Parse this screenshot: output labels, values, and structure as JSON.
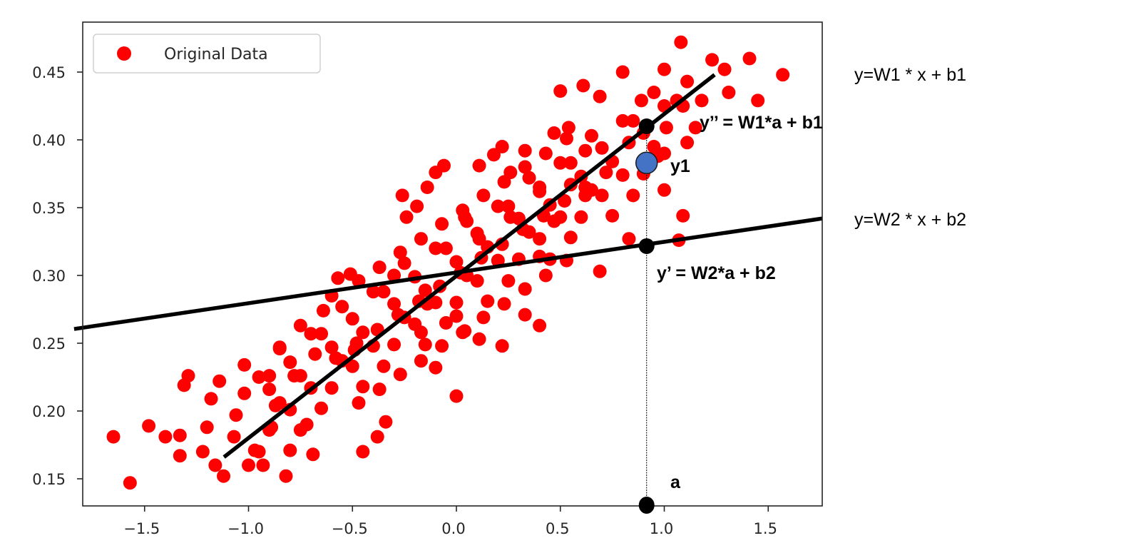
{
  "chart_data": {
    "type": "scatter",
    "title": "",
    "xlabel": "",
    "ylabel": "",
    "xlim": [
      -1.8,
      1.76
    ],
    "ylim": [
      0.13,
      0.487
    ],
    "grid": false,
    "legend": {
      "placement": "top-left",
      "entries": [
        "Original Data"
      ]
    },
    "xticks": [
      "−1.5",
      "−1.0",
      "−0.5",
      "0.0",
      "0.5",
      "1.0",
      "1.5"
    ],
    "xtick_values": [
      -1.5,
      -1.0,
      -0.5,
      0.0,
      0.5,
      1.0,
      1.5
    ],
    "yticks": [
      "0.15",
      "0.20",
      "0.25",
      "0.30",
      "0.35",
      "0.40",
      "0.45"
    ],
    "ytick_values": [
      0.15,
      0.2,
      0.25,
      0.3,
      0.35,
      0.4,
      0.45
    ],
    "series": [
      {
        "name": "Original Data",
        "color": "#ff0000",
        "points": [
          [
            -1.65,
            0.181
          ],
          [
            -1.57,
            0.147
          ],
          [
            -1.48,
            0.189
          ],
          [
            -1.4,
            0.181
          ],
          [
            -1.33,
            0.182
          ],
          [
            -1.33,
            0.167
          ],
          [
            -1.29,
            0.226
          ],
          [
            -1.31,
            0.219
          ],
          [
            -1.22,
            0.17
          ],
          [
            -1.2,
            0.188
          ],
          [
            -1.18,
            0.209
          ],
          [
            -1.14,
            0.222
          ],
          [
            -1.12,
            0.152
          ],
          [
            -1.16,
            0.16
          ],
          [
            -1.07,
            0.181
          ],
          [
            -1.06,
            0.197
          ],
          [
            -1.02,
            0.213
          ],
          [
            -1.02,
            0.234
          ],
          [
            -1.0,
            0.16
          ],
          [
            -0.97,
            0.171
          ],
          [
            -0.93,
            0.16
          ],
          [
            -0.89,
            0.188
          ],
          [
            -0.87,
            0.204
          ],
          [
            -0.9,
            0.226
          ],
          [
            -0.85,
            0.247
          ],
          [
            -0.82,
            0.152
          ],
          [
            -0.8,
            0.171
          ],
          [
            -0.78,
            0.226
          ],
          [
            -0.75,
            0.263
          ],
          [
            -0.72,
            0.19
          ],
          [
            -0.69,
            0.168
          ],
          [
            -0.68,
            0.242
          ],
          [
            -0.64,
            0.274
          ],
          [
            -0.6,
            0.285
          ],
          [
            -0.57,
            0.298
          ],
          [
            -0.51,
            0.301
          ],
          [
            -0.49,
            0.245
          ],
          [
            -0.45,
            0.17
          ],
          [
            -0.38,
            0.181
          ],
          [
            -0.34,
            0.192
          ],
          [
            -0.24,
            0.343
          ],
          [
            -0.26,
            0.359
          ],
          [
            -0.19,
            0.351
          ],
          [
            -0.14,
            0.365
          ],
          [
            -0.1,
            0.376
          ],
          [
            -0.06,
            0.381
          ],
          [
            0.0,
            0.211
          ],
          [
            0.04,
            0.343
          ],
          [
            0.11,
            0.381
          ],
          [
            0.18,
            0.389
          ],
          [
            0.22,
            0.395
          ],
          [
            0.26,
            0.376
          ],
          [
            0.33,
            0.392
          ],
          [
            0.4,
            0.263
          ],
          [
            0.47,
            0.405
          ],
          [
            0.5,
            0.436
          ],
          [
            0.61,
            0.44
          ],
          [
            0.69,
            0.432
          ],
          [
            0.8,
            0.45
          ],
          [
            0.89,
            0.429
          ],
          [
            1.0,
            0.452
          ],
          [
            1.06,
            0.429
          ],
          [
            1.08,
            0.472
          ],
          [
            1.11,
            0.443
          ],
          [
            1.18,
            0.429
          ],
          [
            1.23,
            0.459
          ],
          [
            1.29,
            0.452
          ],
          [
            1.31,
            0.435
          ],
          [
            1.41,
            0.46
          ],
          [
            1.45,
            0.429
          ],
          [
            1.57,
            0.448
          ],
          [
            1.09,
            0.425
          ],
          [
            1.09,
            0.344
          ],
          [
            1.0,
            0.363
          ],
          [
            1.07,
            0.326
          ],
          [
            0.83,
            0.327
          ],
          [
            0.69,
            0.303
          ],
          [
            0.62,
            0.359
          ],
          [
            0.55,
            0.367
          ],
          [
            0.47,
            0.34
          ],
          [
            0.4,
            0.314
          ],
          [
            0.33,
            0.271
          ],
          [
            0.22,
            0.248
          ],
          [
            0.11,
            0.253
          ],
          [
            0.04,
            0.259
          ],
          [
            -0.1,
            0.232
          ],
          [
            -0.17,
            0.258
          ],
          [
            -0.3,
            0.3
          ],
          [
            0.0,
            0.27
          ],
          [
            -0.14,
            0.279
          ],
          [
            0.11,
            0.327
          ],
          [
            0.26,
            0.343
          ],
          [
            0.4,
            0.365
          ],
          [
            0.62,
            0.392
          ],
          [
            0.83,
            0.398
          ],
          [
            0.9,
            0.382
          ],
          [
            0.97,
            0.388
          ],
          [
            1.11,
            0.398
          ],
          [
            1.15,
            0.409
          ],
          [
            1.01,
            0.409
          ],
          [
            0.54,
            0.409
          ],
          [
            -0.95,
            0.17
          ],
          [
            -0.95,
            0.225
          ],
          [
            -0.9,
            0.216
          ],
          [
            -0.9,
            0.186
          ],
          [
            -0.85,
            0.246
          ],
          [
            -0.85,
            0.206
          ],
          [
            -0.8,
            0.201
          ],
          [
            -0.8,
            0.236
          ],
          [
            -0.75,
            0.226
          ],
          [
            -0.75,
            0.186
          ],
          [
            -0.7,
            0.257
          ],
          [
            -0.7,
            0.217
          ],
          [
            -0.65,
            0.202
          ],
          [
            -0.65,
            0.257
          ],
          [
            -0.6,
            0.247
          ],
          [
            -0.6,
            0.217
          ],
          [
            -0.55,
            0.277
          ],
          [
            -0.55,
            0.237
          ],
          [
            -0.5,
            0.233
          ],
          [
            -0.5,
            0.268
          ],
          [
            -0.45,
            0.258
          ],
          [
            -0.45,
            0.218
          ],
          [
            -0.4,
            0.288
          ],
          [
            -0.4,
            0.248
          ],
          [
            -0.35,
            0.233
          ],
          [
            -0.35,
            0.288
          ],
          [
            -0.3,
            0.279
          ],
          [
            -0.3,
            0.249
          ],
          [
            -0.25,
            0.309
          ],
          [
            -0.25,
            0.269
          ],
          [
            -0.2,
            0.264
          ],
          [
            -0.2,
            0.299
          ],
          [
            -0.15,
            0.289
          ],
          [
            -0.15,
            0.249
          ],
          [
            -0.1,
            0.32
          ],
          [
            -0.1,
            0.28
          ],
          [
            -0.05,
            0.265
          ],
          [
            -0.05,
            0.32
          ],
          [
            0.0,
            0.31
          ],
          [
            0.0,
            0.28
          ],
          [
            0.05,
            0.34
          ],
          [
            0.05,
            0.3
          ],
          [
            0.1,
            0.296
          ],
          [
            0.1,
            0.331
          ],
          [
            0.15,
            0.321
          ],
          [
            0.15,
            0.281
          ],
          [
            0.2,
            0.351
          ],
          [
            0.2,
            0.311
          ],
          [
            0.25,
            0.296
          ],
          [
            0.25,
            0.351
          ],
          [
            0.3,
            0.342
          ],
          [
            0.3,
            0.312
          ],
          [
            0.35,
            0.372
          ],
          [
            0.35,
            0.332
          ],
          [
            0.4,
            0.327
          ],
          [
            0.4,
            0.362
          ],
          [
            0.45,
            0.352
          ],
          [
            0.45,
            0.312
          ],
          [
            0.5,
            0.383
          ],
          [
            0.5,
            0.343
          ],
          [
            0.55,
            0.328
          ],
          [
            0.55,
            0.383
          ],
          [
            0.6,
            0.373
          ],
          [
            0.6,
            0.343
          ],
          [
            0.65,
            0.403
          ],
          [
            0.65,
            0.363
          ],
          [
            0.7,
            0.359
          ],
          [
            0.7,
            0.394
          ],
          [
            0.75,
            0.384
          ],
          [
            0.75,
            0.344
          ],
          [
            0.8,
            0.414
          ],
          [
            0.8,
            0.374
          ],
          [
            0.85,
            0.359
          ],
          [
            0.85,
            0.414
          ],
          [
            0.9,
            0.405
          ],
          [
            0.9,
            0.375
          ],
          [
            0.95,
            0.435
          ],
          [
            0.95,
            0.395
          ],
          [
            1.0,
            0.39
          ],
          [
            1.0,
            0.425
          ],
          [
            -0.47,
            0.206
          ],
          [
            -0.47,
            0.296
          ],
          [
            -0.37,
            0.216
          ],
          [
            -0.37,
            0.306
          ],
          [
            -0.27,
            0.227
          ],
          [
            -0.27,
            0.317
          ],
          [
            -0.17,
            0.237
          ],
          [
            -0.17,
            0.327
          ],
          [
            -0.07,
            0.248
          ],
          [
            -0.07,
            0.338
          ],
          [
            0.03,
            0.258
          ],
          [
            0.03,
            0.348
          ],
          [
            0.13,
            0.269
          ],
          [
            0.13,
            0.359
          ],
          [
            0.23,
            0.279
          ],
          [
            0.23,
            0.369
          ],
          [
            0.33,
            0.29
          ],
          [
            0.33,
            0.38
          ],
          [
            0.43,
            0.3
          ],
          [
            0.43,
            0.39
          ],
          [
            0.53,
            0.311
          ],
          [
            0.53,
            0.401
          ],
          [
            -0.58,
            0.239
          ],
          [
            -0.48,
            0.25
          ],
          [
            -0.38,
            0.26
          ],
          [
            -0.28,
            0.271
          ],
          [
            -0.18,
            0.281
          ],
          [
            -0.08,
            0.292
          ],
          [
            0.02,
            0.302
          ],
          [
            0.12,
            0.313
          ],
          [
            0.22,
            0.323
          ],
          [
            0.32,
            0.334
          ],
          [
            0.42,
            0.344
          ],
          [
            0.52,
            0.355
          ],
          [
            0.62,
            0.365
          ],
          [
            0.72,
            0.376
          ]
        ]
      }
    ],
    "lines": [
      {
        "label": "y=W1 * x + b1",
        "from": [
          -1.118,
          0.166
        ],
        "to": [
          1.242,
          0.448
        ],
        "color": "#000000"
      },
      {
        "label": "y=W2 * x + b2",
        "from": [
          -1.839,
          0.2605
        ],
        "to": [
          1.76,
          0.342
        ],
        "color": "#000000"
      }
    ],
    "annotations": {
      "a": {
        "label": "a",
        "x": 0.915,
        "y": 0.13
      },
      "y_prime": {
        "label": "y’ = W2*a + b2",
        "x": 0.915,
        "y": 0.3216
      },
      "y_double_prime": {
        "label": "y’’ = W1*a + b1",
        "x": 0.915,
        "y": 0.41
      },
      "y1": {
        "label": "y1",
        "x": 0.915,
        "y": 0.383,
        "color": "#4472c4"
      }
    }
  }
}
